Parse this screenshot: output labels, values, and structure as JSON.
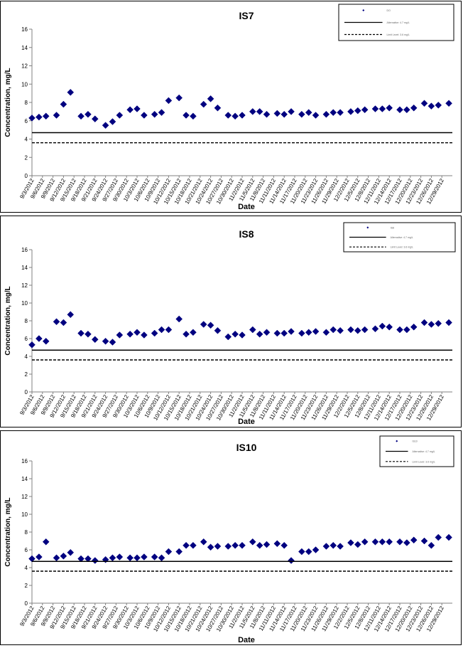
{
  "chart_data": [
    {
      "type": "scatter",
      "title": "IS7",
      "xlabel": "Date",
      "ylabel": "Concentration, mg/L",
      "ylim": [
        0,
        16
      ],
      "yticks": [
        0,
        2,
        4,
        6,
        8,
        10,
        12,
        14,
        16
      ],
      "x_tick_labels": [
        "9/3/2012",
        "9/6/2012",
        "9/9/2012",
        "9/12/2012",
        "9/15/2012",
        "9/18/2012",
        "9/21/2012",
        "9/24/2012",
        "9/27/2012",
        "9/30/2012",
        "10/3/2012",
        "10/6/2012",
        "10/9/2012",
        "10/12/2012",
        "10/15/2012",
        "10/18/2012",
        "10/21/2012",
        "10/24/2012",
        "10/27/2012",
        "10/30/2012",
        "11/2/2012",
        "11/5/2012",
        "11/8/2012",
        "11/11/2012",
        "11/14/2012",
        "11/17/2012",
        "11/20/2012",
        "11/23/2012",
        "11/26/2012",
        "11/29/2012",
        "12/2/2012",
        "12/5/2012",
        "12/8/2012",
        "12/11/2012",
        "12/14/2012",
        "12/17/2012",
        "12/20/2012",
        "12/23/2012",
        "12/26/2012",
        "12/29/2012"
      ],
      "grid": false,
      "legend_position": "top-right",
      "series": [
        {
          "name": "DO",
          "marker": "diamond",
          "color": "#000080",
          "x": [
            "9/3/2012",
            "9/5/2012",
            "9/7/2012",
            "9/10/2012",
            "9/12/2012",
            "9/14/2012",
            "9/17/2012",
            "9/19/2012",
            "9/21/2012",
            "9/24/2012",
            "9/26/2012",
            "9/28/2012",
            "10/1/2012",
            "10/3/2012",
            "10/5/2012",
            "10/8/2012",
            "10/10/2012",
            "10/12/2012",
            "10/15/2012",
            "10/17/2012",
            "10/19/2012",
            "10/22/2012",
            "10/24/2012",
            "10/26/2012",
            "10/29/2012",
            "10/31/2012",
            "11/2/2012",
            "11/5/2012",
            "11/7/2012",
            "11/9/2012",
            "11/12/2012",
            "11/14/2012",
            "11/16/2012",
            "11/19/2012",
            "11/21/2012",
            "11/23/2012",
            "11/26/2012",
            "11/28/2012",
            "11/30/2012",
            "12/3/2012",
            "12/5/2012",
            "12/7/2012",
            "12/10/2012",
            "12/12/2012",
            "12/14/2012",
            "12/17/2012",
            "12/19/2012",
            "12/21/2012",
            "12/24/2012",
            "12/26/2012",
            "12/28/2012",
            "12/31/2012"
          ],
          "y": [
            6.3,
            6.4,
            6.5,
            6.6,
            7.8,
            9.1,
            6.5,
            6.7,
            6.2,
            5.5,
            5.9,
            6.6,
            7.2,
            7.3,
            6.6,
            6.7,
            6.9,
            8.2,
            8.5,
            6.6,
            6.5,
            7.8,
            8.4,
            7.4,
            6.6,
            6.5,
            6.6,
            7.0,
            7.0,
            6.7,
            6.8,
            6.7,
            7.0,
            6.7,
            6.9,
            6.6,
            6.7,
            6.9,
            6.9,
            7.0,
            7.1,
            7.2,
            7.3,
            7.3,
            7.4,
            7.2,
            7.2,
            7.4,
            7.9,
            7.6,
            7.7,
            7.9
          ]
        },
        {
          "name": "Alternative: 4.7 mg/L",
          "line": "solid",
          "y": 4.7
        },
        {
          "name": "Limit Level: 3.6 mg/L",
          "line": "dashed",
          "y": 3.6
        }
      ]
    },
    {
      "type": "scatter",
      "title": "IS8",
      "xlabel": "Date",
      "ylabel": "Concentration, mg/L",
      "ylim": [
        0,
        16
      ],
      "yticks": [
        0,
        2,
        4,
        6,
        8,
        10,
        12,
        14,
        16
      ],
      "x_tick_labels": [
        "9/3/2012",
        "9/6/2012",
        "9/9/2012",
        "9/12/2012",
        "9/15/2012",
        "9/18/2012",
        "9/21/2012",
        "9/24/2012",
        "9/27/2012",
        "9/30/2012",
        "10/3/2012",
        "10/6/2012",
        "10/9/2012",
        "10/12/2012",
        "10/15/2012",
        "10/18/2012",
        "10/21/2012",
        "10/24/2012",
        "10/27/2012",
        "10/30/2012",
        "11/2/2012",
        "11/5/2012",
        "11/8/2012",
        "11/11/2012",
        "11/14/2012",
        "11/17/2012",
        "11/20/2012",
        "11/23/2012",
        "11/26/2012",
        "11/29/2012",
        "12/2/2012",
        "12/5/2012",
        "12/8/2012",
        "12/11/2012",
        "12/14/2012",
        "12/17/2012",
        "12/20/2012",
        "12/23/2012",
        "12/26/2012",
        "12/29/2012"
      ],
      "grid": false,
      "legend_position": "top-right",
      "series": [
        {
          "name": "IS8",
          "marker": "diamond",
          "color": "#000080",
          "x": [
            "9/3/2012",
            "9/5/2012",
            "9/7/2012",
            "9/10/2012",
            "9/12/2012",
            "9/14/2012",
            "9/17/2012",
            "9/19/2012",
            "9/21/2012",
            "9/24/2012",
            "9/26/2012",
            "9/28/2012",
            "10/1/2012",
            "10/3/2012",
            "10/5/2012",
            "10/8/2012",
            "10/10/2012",
            "10/12/2012",
            "10/15/2012",
            "10/17/2012",
            "10/19/2012",
            "10/22/2012",
            "10/24/2012",
            "10/26/2012",
            "10/29/2012",
            "10/31/2012",
            "11/2/2012",
            "11/5/2012",
            "11/7/2012",
            "11/9/2012",
            "11/12/2012",
            "11/14/2012",
            "11/16/2012",
            "11/19/2012",
            "11/21/2012",
            "11/23/2012",
            "11/26/2012",
            "11/28/2012",
            "11/30/2012",
            "12/3/2012",
            "12/5/2012",
            "12/7/2012",
            "12/10/2012",
            "12/12/2012",
            "12/14/2012",
            "12/17/2012",
            "12/19/2012",
            "12/21/2012",
            "12/24/2012",
            "12/26/2012",
            "12/28/2012",
            "12/31/2012"
          ],
          "y": [
            5.3,
            6.0,
            5.7,
            7.9,
            7.8,
            8.7,
            6.6,
            6.5,
            5.9,
            5.7,
            5.6,
            6.4,
            6.5,
            6.7,
            6.4,
            6.6,
            7.0,
            7.0,
            8.2,
            6.5,
            6.7,
            7.6,
            7.5,
            6.9,
            6.2,
            6.5,
            6.4,
            7.0,
            6.5,
            6.7,
            6.6,
            6.6,
            6.8,
            6.6,
            6.7,
            6.8,
            6.7,
            7.0,
            6.9,
            7.0,
            6.9,
            7.0,
            7.1,
            7.4,
            7.3,
            7.0,
            7.0,
            7.3,
            7.8,
            7.6,
            7.7,
            7.8
          ]
        },
        {
          "name": "Alternative: 4.7 mg/L",
          "line": "solid",
          "y": 4.7
        },
        {
          "name": "Limit Level: 3.6 mg/L",
          "line": "dashed",
          "y": 3.6
        }
      ]
    },
    {
      "type": "scatter",
      "title": "IS10",
      "xlabel": "Date",
      "ylabel": "Concentration, mg/L",
      "ylim": [
        0,
        16
      ],
      "yticks": [
        0,
        2,
        4,
        6,
        8,
        10,
        12,
        14,
        16
      ],
      "x_tick_labels": [
        "9/3/2012",
        "9/6/2012",
        "9/9/2012",
        "9/12/2012",
        "9/15/2012",
        "9/18/2012",
        "9/21/2012",
        "9/24/2012",
        "9/27/2012",
        "9/30/2012",
        "10/3/2012",
        "10/6/2012",
        "10/9/2012",
        "10/12/2012",
        "10/15/2012",
        "10/18/2012",
        "10/21/2012",
        "10/24/2012",
        "10/27/2012",
        "10/30/2012",
        "11/2/2012",
        "11/5/2012",
        "11/8/2012",
        "11/11/2012",
        "11/14/2012",
        "11/17/2012",
        "11/20/2012",
        "11/23/2012",
        "11/26/2012",
        "11/29/2012",
        "12/2/2012",
        "12/5/2012",
        "12/8/2012",
        "12/11/2012",
        "12/14/2012",
        "12/17/2012",
        "12/20/2012",
        "12/23/2012",
        "12/26/2012",
        "12/29/2012"
      ],
      "grid": false,
      "legend_position": "top-right",
      "series": [
        {
          "name": "IS10",
          "marker": "diamond",
          "color": "#000080",
          "x": [
            "9/3/2012",
            "9/5/2012",
            "9/7/2012",
            "9/10/2012",
            "9/12/2012",
            "9/14/2012",
            "9/17/2012",
            "9/19/2012",
            "9/21/2012",
            "9/24/2012",
            "9/26/2012",
            "9/28/2012",
            "10/1/2012",
            "10/3/2012",
            "10/5/2012",
            "10/8/2012",
            "10/10/2012",
            "10/12/2012",
            "10/15/2012",
            "10/17/2012",
            "10/19/2012",
            "10/22/2012",
            "10/24/2012",
            "10/26/2012",
            "10/29/2012",
            "10/31/2012",
            "11/2/2012",
            "11/5/2012",
            "11/7/2012",
            "11/9/2012",
            "11/12/2012",
            "11/14/2012",
            "11/16/2012",
            "11/19/2012",
            "11/21/2012",
            "11/23/2012",
            "11/26/2012",
            "11/28/2012",
            "11/30/2012",
            "12/3/2012",
            "12/5/2012",
            "12/7/2012",
            "12/10/2012",
            "12/12/2012",
            "12/14/2012",
            "12/17/2012",
            "12/19/2012",
            "12/21/2012",
            "12/24/2012",
            "12/26/2012",
            "12/28/2012",
            "12/31/2012"
          ],
          "y": [
            5.0,
            5.2,
            6.9,
            5.1,
            5.3,
            5.7,
            5.0,
            5.0,
            4.8,
            4.9,
            5.1,
            5.2,
            5.1,
            5.1,
            5.2,
            5.2,
            5.1,
            5.8,
            5.8,
            6.5,
            6.5,
            6.9,
            6.3,
            6.4,
            6.4,
            6.5,
            6.5,
            6.9,
            6.5,
            6.6,
            6.7,
            6.5,
            4.8,
            5.8,
            5.8,
            6.0,
            6.4,
            6.5,
            6.4,
            6.8,
            6.6,
            6.9,
            6.9,
            6.9,
            6.9,
            6.9,
            6.8,
            7.1,
            7.0,
            6.5,
            7.4,
            7.4
          ]
        },
        {
          "name": "Alternative: 4.7 mg/L",
          "line": "solid",
          "y": 4.7
        },
        {
          "name": "Limit Level: 3.6 mg/L",
          "line": "dashed",
          "y": 3.6
        }
      ]
    }
  ]
}
